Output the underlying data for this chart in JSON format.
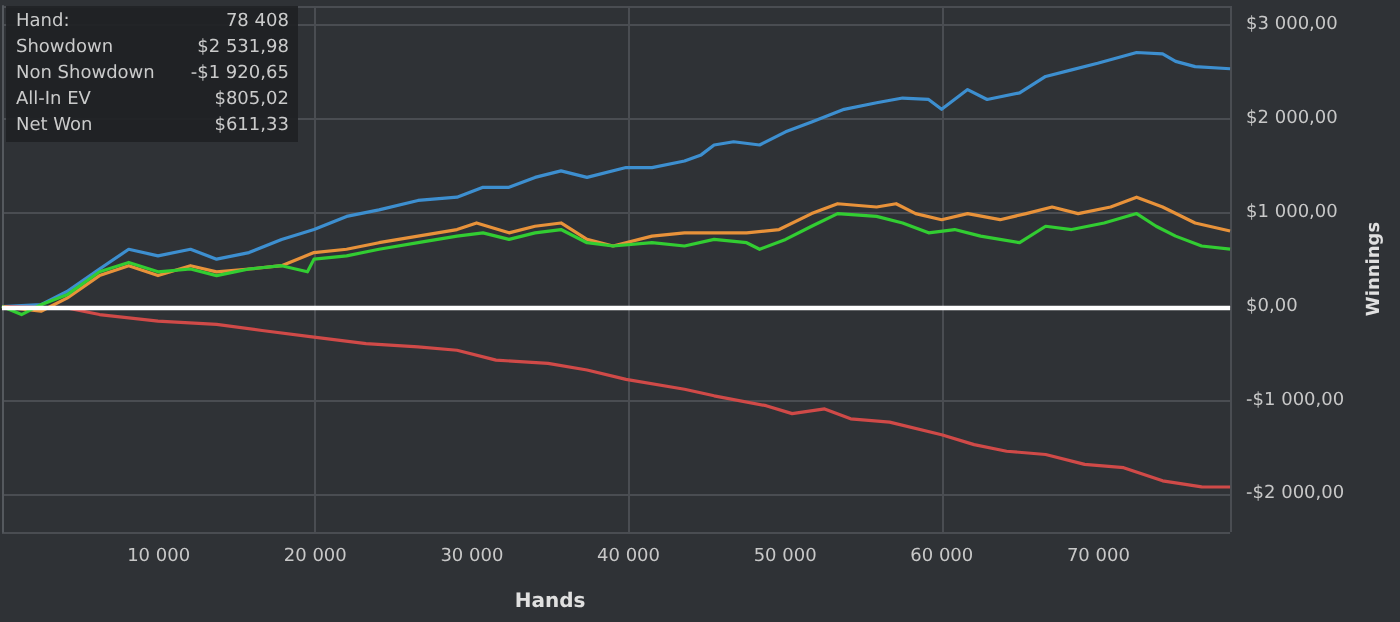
{
  "chart_data": {
    "type": "line",
    "xlabel": "Hands",
    "ylabel": "Winnings",
    "annotations": [
      "Hand:",
      "78 408",
      "Showdown",
      "$2 531,98",
      "Non Showdown",
      "-$1 920,65",
      "All-In EV",
      "$805,02",
      "Net Won",
      "$611,33"
    ],
    "xlim": [
      0,
      78408
    ],
    "ylim": [
      -2400,
      3200
    ],
    "xticks": [
      {
        "value": 10000,
        "label": "10 000"
      },
      {
        "value": 20000,
        "label": "20 000"
      },
      {
        "value": 30000,
        "label": "30 000"
      },
      {
        "value": 40000,
        "label": "40 000"
      },
      {
        "value": 50000,
        "label": "50 000"
      },
      {
        "value": 60000,
        "label": "60 000"
      },
      {
        "value": 70000,
        "label": "70 000"
      }
    ],
    "yticks": [
      {
        "value": -2000,
        "label": "-$2 000,00"
      },
      {
        "value": -1000,
        "label": "-$1 000,00"
      },
      {
        "value": 0,
        "label": "$0,00"
      },
      {
        "value": 1000,
        "label": "$1 000,00"
      },
      {
        "value": 2000,
        "label": "$2 000,00"
      },
      {
        "value": 3000,
        "label": "$3 000,00"
      }
    ],
    "grid": true,
    "marker": "none",
    "line_style": "solid",
    "ref_lines": [
      {
        "axis": "y",
        "value": 0,
        "label": null,
        "color": "#ffffff"
      }
    ],
    "series": [
      {
        "color": "#3d8fd0",
        "x": [
          0,
          2490,
          4150,
          6225,
          8090,
          9960,
          12035,
          13700,
          15770,
          17850,
          19920,
          22000,
          24070,
          26560,
          29050,
          30710,
          32370,
          34030,
          35690,
          37350,
          39840,
          41500,
          43575,
          44635,
          45465,
          46710,
          48370,
          50030,
          51690,
          53765,
          55840,
          57500,
          59160,
          59990,
          61650,
          62895,
          64970,
          66630,
          68290,
          69950,
          72440,
          74100,
          74930,
          76175,
          78408
        ],
        "values": [
          0,
          20,
          160,
          400,
          610,
          540,
          610,
          505,
          575,
          715,
          820,
          960,
          1030,
          1130,
          1165,
          1270,
          1270,
          1375,
          1445,
          1375,
          1480,
          1480,
          1550,
          1615,
          1720,
          1755,
          1720,
          1860,
          1965,
          2100,
          2170,
          2220,
          2205,
          2100,
          2310,
          2205,
          2275,
          2450,
          2520,
          2590,
          2705,
          2690,
          2610,
          2555,
          2531.98
        ]
      },
      {
        "color": "#d04a48",
        "x": [
          0,
          4150,
          6225,
          9960,
          13700,
          16600,
          19920,
          23240,
          26560,
          29050,
          31540,
          34860,
          37350,
          39840,
          43575,
          45465,
          48785,
          50445,
          52520,
          54180,
          56670,
          59990,
          62065,
          64140,
          66630,
          69120,
          71610,
          74100,
          76590,
          78408
        ],
        "values": [
          0,
          -15,
          -85,
          -155,
          -190,
          -255,
          -325,
          -395,
          -430,
          -465,
          -570,
          -605,
          -675,
          -775,
          -880,
          -950,
          -1055,
          -1140,
          -1090,
          -1195,
          -1230,
          -1365,
          -1470,
          -1540,
          -1575,
          -1680,
          -1715,
          -1855,
          -1920,
          -1920.65
        ]
      },
      {
        "color": "#e8923a",
        "x": [
          0,
          2490,
          4150,
          6225,
          8090,
          9960,
          12035,
          13700,
          15770,
          17850,
          19920,
          22000,
          24070,
          26560,
          29050,
          30300,
          32370,
          34030,
          35690,
          37350,
          39010,
          41500,
          43575,
          45465,
          47540,
          49615,
          51690,
          53350,
          55840,
          57085,
          58330,
          59990,
          61650,
          63725,
          65385,
          67045,
          68705,
          70780,
          72440,
          74100,
          76175,
          78408
        ],
        "values": [
          0,
          -50,
          90,
          330,
          435,
          330,
          435,
          370,
          400,
          435,
          575,
          610,
          680,
          750,
          820,
          890,
          785,
          855,
          890,
          715,
          645,
          750,
          785,
          785,
          785,
          820,
          990,
          1095,
          1060,
          1095,
          990,
          925,
          990,
          925,
          990,
          1060,
          990,
          1060,
          1165,
          1060,
          890,
          805.02
        ]
      },
      {
        "color": "#32cd32",
        "x": [
          0,
          1245,
          2490,
          4150,
          6225,
          8090,
          9960,
          12035,
          13700,
          15770,
          17850,
          19500,
          19920,
          22000,
          24070,
          26560,
          29050,
          30710,
          32370,
          34030,
          35690,
          37350,
          39010,
          41500,
          43575,
          45465,
          47540,
          48370,
          50030,
          51690,
          53350,
          55840,
          57500,
          59160,
          60820,
          62480,
          64970,
          66630,
          68290,
          70365,
          72440,
          73685,
          74930,
          76590,
          78408
        ],
        "values": [
          0,
          -85,
          20,
          125,
          370,
          470,
          370,
          400,
          330,
          400,
          435,
          370,
          505,
          540,
          610,
          680,
          750,
          785,
          715,
          785,
          820,
          680,
          645,
          680,
          645,
          715,
          680,
          610,
          715,
          855,
          990,
          960,
          890,
          785,
          820,
          750,
          680,
          855,
          820,
          890,
          990,
          855,
          750,
          645,
          611.33
        ]
      }
    ]
  }
}
